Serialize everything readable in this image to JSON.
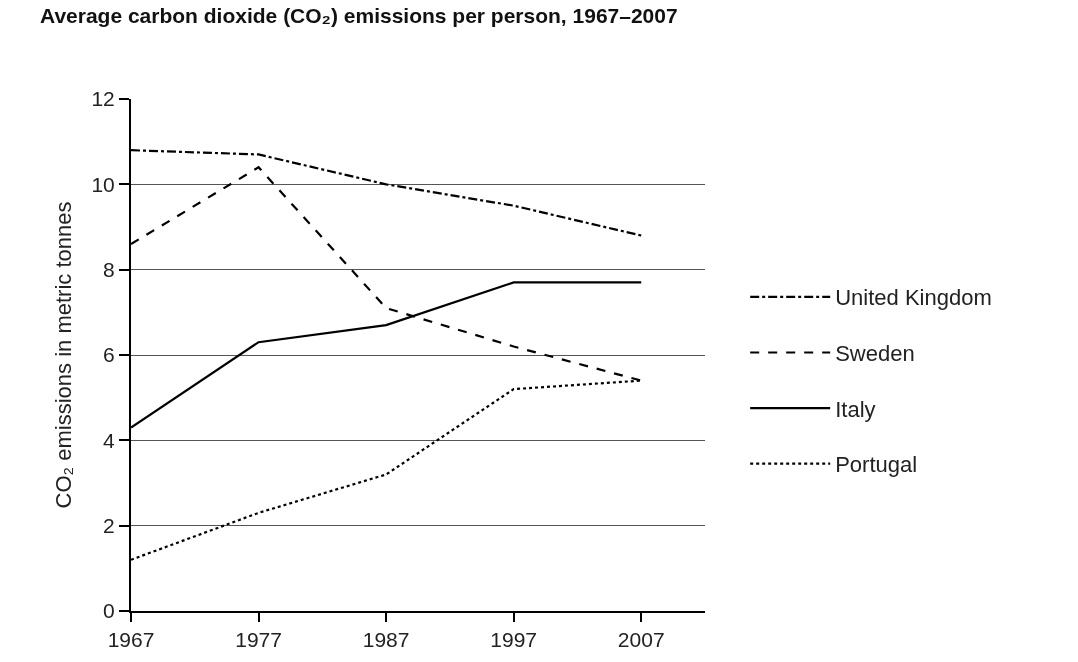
{
  "chart_data": {
    "type": "line",
    "title": "Average carbon dioxide (CO₂) emissions per person, 1967–2007",
    "ylabel": "CO₂ emissions in metric tonnes",
    "x": [
      1967,
      1977,
      1987,
      1997,
      2007
    ],
    "xlim": [
      1967,
      2012
    ],
    "xticks": [
      1967,
      1977,
      1987,
      1997,
      2007
    ],
    "ylim": [
      0,
      12
    ],
    "yticks": [
      0,
      2,
      4,
      6,
      8,
      10,
      12
    ],
    "grid": "y",
    "legend": "right",
    "series": [
      {
        "name": "United Kingdom",
        "color": "#000000",
        "line_style": "dashdot",
        "values": [
          10.8,
          10.7,
          10.0,
          9.5,
          8.8
        ]
      },
      {
        "name": "Sweden",
        "color": "#000000",
        "line_style": "dashed",
        "values": [
          8.6,
          10.4,
          7.1,
          6.2,
          5.4
        ]
      },
      {
        "name": "Italy",
        "color": "#000000",
        "line_style": "solid",
        "values": [
          4.3,
          6.3,
          6.7,
          7.7,
          7.7
        ]
      },
      {
        "name": "Portugal",
        "color": "#000000",
        "line_style": "dotted",
        "values": [
          1.2,
          2.3,
          3.2,
          5.2,
          5.4
        ]
      }
    ]
  }
}
